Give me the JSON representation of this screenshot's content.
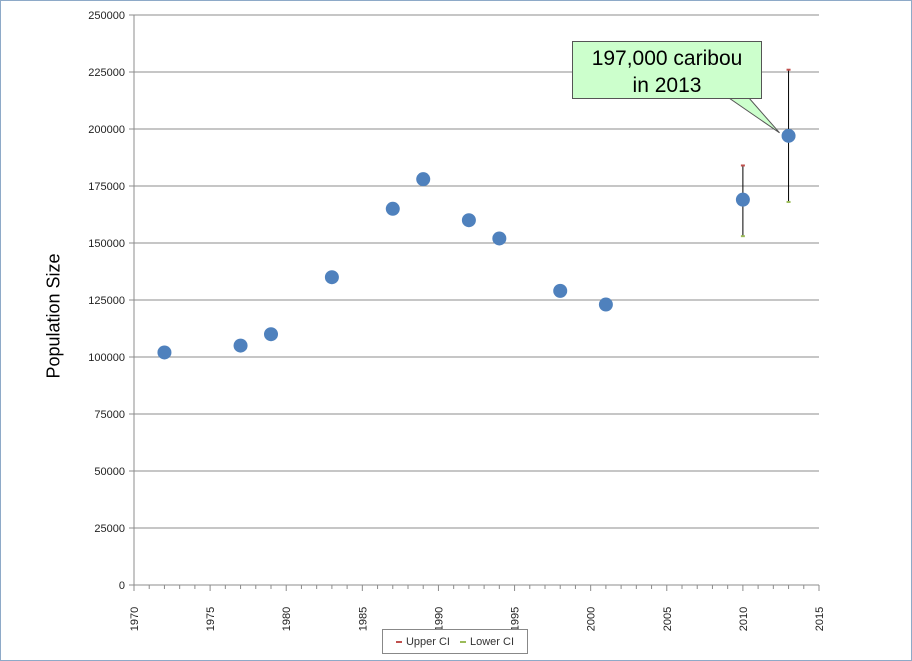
{
  "chart_data": {
    "type": "scatter",
    "title": "",
    "xlabel": "",
    "ylabel": "Population Size",
    "xlim": [
      1970,
      2015
    ],
    "ylim": [
      0,
      250000
    ],
    "x_ticks": [
      1970,
      1975,
      1980,
      1985,
      1990,
      1995,
      2000,
      2005,
      2010,
      2015
    ],
    "y_ticks": [
      0,
      25000,
      50000,
      75000,
      100000,
      125000,
      150000,
      175000,
      200000,
      225000,
      250000
    ],
    "grid": "horizontal",
    "legend_position": "bottom",
    "series": [
      {
        "type": "scatter",
        "color": "#4f81bd",
        "points": [
          {
            "x": 1972,
            "y": 102000
          },
          {
            "x": 1977,
            "y": 105000
          },
          {
            "x": 1979,
            "y": 110000
          },
          {
            "x": 1983,
            "y": 135000
          },
          {
            "x": 1987,
            "y": 165000
          },
          {
            "x": 1989,
            "y": 178000
          },
          {
            "x": 1992,
            "y": 160000
          },
          {
            "x": 1994,
            "y": 152000
          },
          {
            "x": 1998,
            "y": 129000
          },
          {
            "x": 2001,
            "y": 123000
          },
          {
            "x": 2010,
            "y": 169000
          },
          {
            "x": 2013,
            "y": 197000
          }
        ]
      },
      {
        "name": "Upper CI",
        "color": "#c0504d",
        "points": [
          {
            "x": 2010,
            "y": 184000
          },
          {
            "x": 2013,
            "y": 226000
          }
        ]
      },
      {
        "name": "Lower CI",
        "color": "#9bbb59",
        "points": [
          {
            "x": 2010,
            "y": 153000
          },
          {
            "x": 2013,
            "y": 168000
          }
        ]
      }
    ],
    "annotations": [
      {
        "line1": "197,000 caribou",
        "line2": "in 2013",
        "target_x": 2013,
        "target_y": 197000
      }
    ]
  }
}
